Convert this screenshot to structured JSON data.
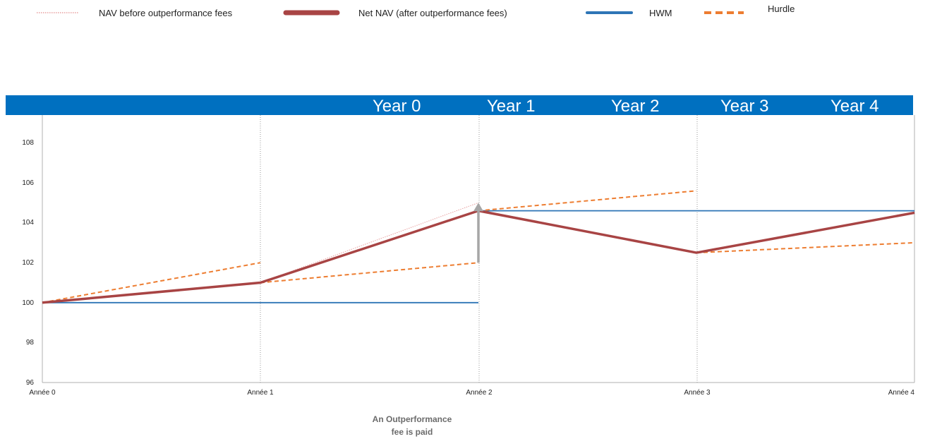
{
  "chart_data": {
    "type": "line",
    "categories": [
      "Année 0",
      "Année 1",
      "Année 2",
      "Année 3",
      "Année 4"
    ],
    "ylim": [
      96,
      109
    ],
    "yticks": [
      96,
      98,
      100,
      102,
      104,
      106,
      108
    ],
    "grid": "vertical dotted lines at each category",
    "legend_position": "top",
    "band_labels": [
      "Year 0",
      "Year 1",
      "Year 2",
      "Year 3",
      "Year 4"
    ],
    "band_color": "#0070C0",
    "annotation": {
      "line1": "An Outperformance",
      "line2": "fee is paid",
      "at": "Année 2",
      "from": 102,
      "to": 105
    },
    "series": [
      {
        "name": "NAV before outperformance fees",
        "color": "#E8A0A0",
        "style": "dotted",
        "segments": [
          [
            [
              0,
              100
            ],
            [
              1,
              101
            ],
            [
              2,
              105
            ]
          ]
        ]
      },
      {
        "name": "Net NAV (after outperformance fees)",
        "color": "#A84444",
        "style": "thick",
        "segments": [
          [
            [
              0,
              100
            ],
            [
              1,
              101
            ],
            [
              2,
              104.6
            ],
            [
              3,
              102.5
            ],
            [
              4,
              104.5
            ]
          ]
        ]
      },
      {
        "name": "HWM",
        "color": "#2E75B6",
        "style": "solid",
        "segments": [
          [
            [
              0,
              100
            ],
            [
              2,
              100
            ]
          ],
          [
            [
              2,
              104.6
            ],
            [
              4,
              104.6
            ]
          ]
        ]
      },
      {
        "name": "Hurdle",
        "color": "#ED7D31",
        "style": "dashed",
        "segments": [
          [
            [
              0,
              100
            ],
            [
              1,
              102
            ]
          ],
          [
            [
              1,
              101
            ],
            [
              2,
              102
            ]
          ],
          [
            [
              2,
              104.6
            ],
            [
              3,
              105.6
            ]
          ],
          [
            [
              3,
              102.5
            ],
            [
              4,
              103
            ]
          ]
        ]
      }
    ]
  }
}
